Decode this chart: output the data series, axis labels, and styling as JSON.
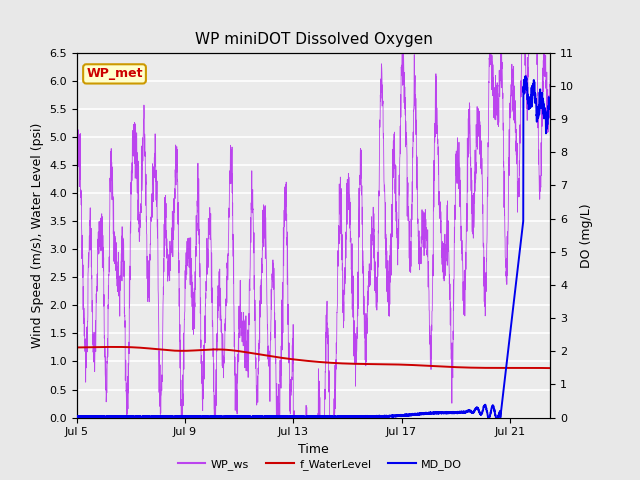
{
  "title": "WP miniDOT Dissolved Oxygen",
  "xlabel": "Time",
  "ylabel_left": "Wind Speed (m/s), Water Level (psi)",
  "ylabel_right": "DO (mg/L)",
  "xlim_days": [
    0,
    17.5
  ],
  "ylim_left": [
    0,
    6.5
  ],
  "ylim_right": [
    0,
    11.0
  ],
  "yticks_left": [
    0.0,
    0.5,
    1.0,
    1.5,
    2.0,
    2.5,
    3.0,
    3.5,
    4.0,
    4.5,
    5.0,
    5.5,
    6.0,
    6.5
  ],
  "yticks_right": [
    0.0,
    1.0,
    2.0,
    3.0,
    4.0,
    5.0,
    6.0,
    7.0,
    8.0,
    9.0,
    10.0,
    11.0
  ],
  "xtick_labels": [
    "Jul 5",
    "Jul 9",
    "Jul 13",
    "Jul 17",
    "Jul 21"
  ],
  "xtick_positions": [
    0,
    4,
    8,
    12,
    16
  ],
  "legend_labels": [
    "WP_ws",
    "f_WaterLevel",
    "MD_DO"
  ],
  "legend_colors": [
    "#bb44ee",
    "#cc0000",
    "#0000ee"
  ],
  "wp_ws_color": "#bb44ee",
  "f_water_color": "#cc0000",
  "md_do_color": "#0000ee",
  "annotation_text": "WP_met",
  "annotation_color": "#cc0000",
  "annotation_bg": "#ffffcc",
  "annotation_border": "#cc9900",
  "background_color": "#e8e8e8",
  "plot_bg_color": "#ebebeb",
  "grid_color": "#ffffff",
  "title_fontsize": 11,
  "axis_fontsize": 9,
  "tick_fontsize": 8
}
